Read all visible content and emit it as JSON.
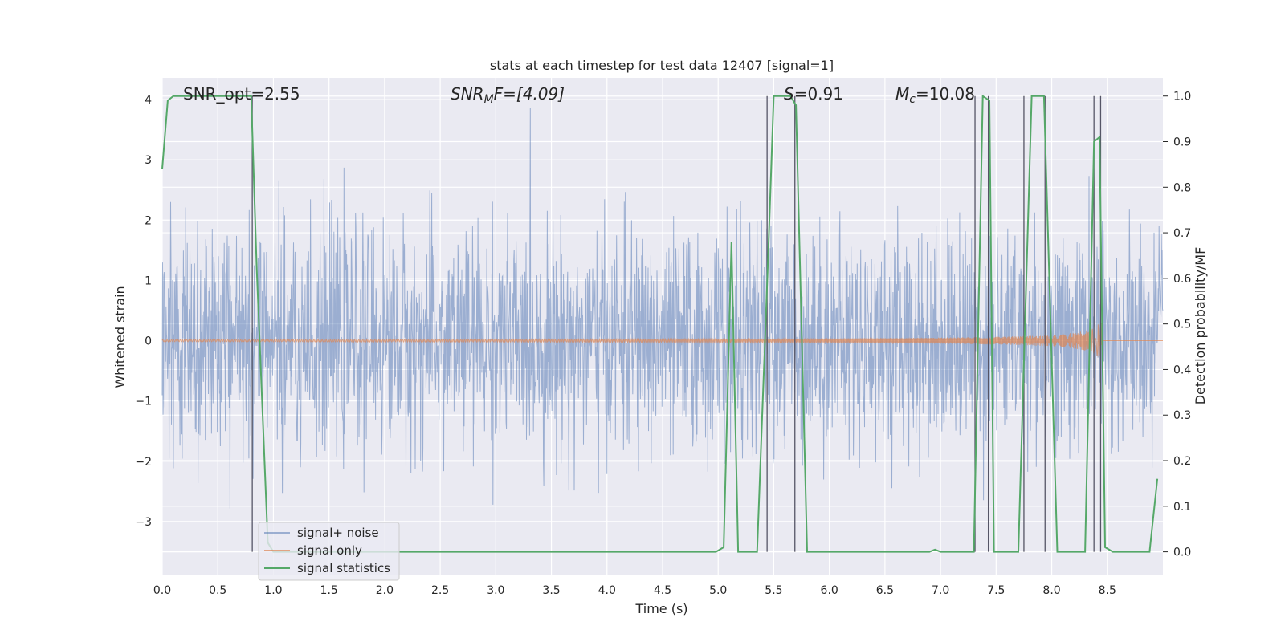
{
  "chart_data": {
    "type": "line",
    "title": "stats at each timestep for test data 12407 [signal=1]",
    "xlabel": "Time (s)",
    "ylabel_left": "Whitened strain",
    "ylabel_right": "Detection probability/MF",
    "xlim": [
      0.0,
      9.0
    ],
    "ylim_left": [
      -3.88,
      4.36
    ],
    "ylim_right": [
      -0.05,
      1.04
    ],
    "xticks": [
      0.0,
      0.5,
      1.0,
      1.5,
      2.0,
      2.5,
      3.0,
      3.5,
      4.0,
      4.5,
      5.0,
      5.5,
      6.0,
      6.5,
      7.0,
      7.5,
      8.0,
      8.5
    ],
    "yticks_left": [
      4,
      3,
      2,
      1,
      0,
      -1,
      -2,
      -3
    ],
    "yticks_right": [
      1.0,
      0.9,
      0.8,
      0.7,
      0.6,
      0.5,
      0.4,
      0.3,
      0.2,
      0.1,
      0.0
    ],
    "grid": true,
    "legend_position": "lower-left",
    "annotations": {
      "snr_opt": "SNR_opt=2.55",
      "snr_mf_prefix": "SNR",
      "snr_mf_sub": "M",
      "snr_mf_suffix": "F=[4.09]",
      "s_prefix": "S",
      "s_suffix": "=0.91",
      "mc_prefix": "M",
      "mc_sub": "c",
      "mc_suffix": "=10.08"
    },
    "series": [
      {
        "name": "signal+ noise",
        "color": "#4c72b0",
        "axis": "left",
        "amplitude_std": 0.9,
        "noise_seed": 12407
      },
      {
        "name": "signal only",
        "color": "#dd8452",
        "axis": "left",
        "chirp_end": 8.45,
        "chirp_peak_amplitude": 0.35
      },
      {
        "name": "signal statistics",
        "color": "#55a868",
        "axis": "right",
        "x": [
          0.0,
          0.05,
          0.1,
          0.8,
          0.85,
          0.95,
          1.0,
          4.98,
          5.05,
          5.12,
          5.18,
          5.35,
          5.45,
          5.5,
          5.65,
          5.7,
          5.8,
          6.9,
          6.95,
          7.0,
          7.3,
          7.38,
          7.44,
          7.48,
          7.7,
          7.82,
          7.93,
          8.05,
          8.3,
          8.38,
          8.43,
          8.48,
          8.55,
          8.88,
          8.95
        ],
        "y": [
          0.84,
          0.99,
          1.0,
          1.0,
          0.62,
          0.02,
          0.0,
          0.0,
          0.01,
          0.68,
          0.0,
          0.0,
          0.65,
          1.0,
          1.0,
          0.98,
          0.0,
          0.0,
          0.005,
          0.0,
          0.0,
          1.0,
          0.99,
          0.0,
          0.0,
          1.0,
          1.0,
          0.0,
          0.0,
          0.9,
          0.91,
          0.01,
          0.0,
          0.0,
          0.16
        ]
      }
    ],
    "vertical_lines_x": [
      0.81,
      5.44,
      5.69,
      7.31,
      7.43,
      7.75,
      7.94,
      8.38,
      8.44
    ]
  }
}
